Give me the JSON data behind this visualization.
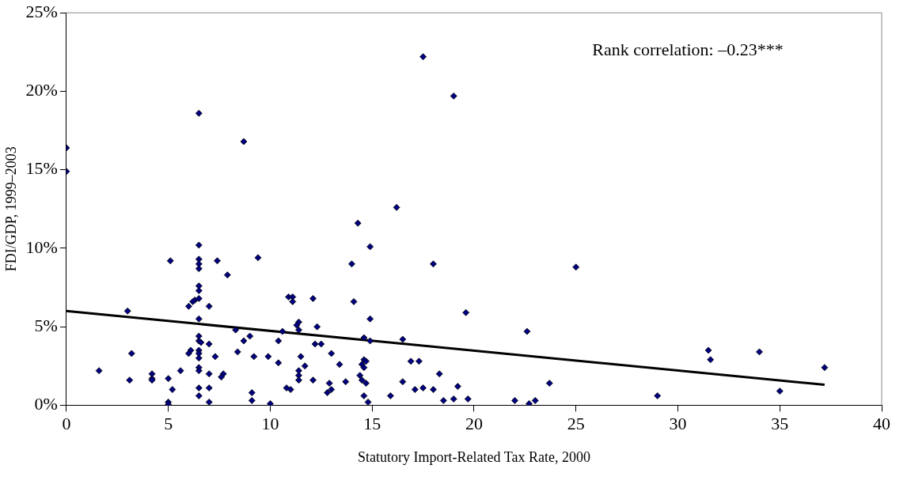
{
  "chart_data": {
    "type": "scatter",
    "xlabel": "Statutory Import-Related Tax Rate, 2000",
    "ylabel": "FDI/GDP, 1999–2003",
    "xlim": [
      0,
      40
    ],
    "xticks": [
      0,
      5,
      10,
      15,
      20,
      25,
      30,
      35,
      40
    ],
    "ylim": [
      0,
      25
    ],
    "yticks": [
      {
        "value": 0,
        "label": "0%"
      },
      {
        "value": 5,
        "label": "5%"
      },
      {
        "value": 10,
        "label": "10%"
      },
      {
        "value": 15,
        "label": "15%"
      },
      {
        "value": 20,
        "label": "20%"
      },
      {
        "value": 25,
        "label": "25%"
      }
    ],
    "grid": false,
    "legend": false,
    "marker": "diamond",
    "annotations": [
      "Rank correlation: –0.23***"
    ],
    "series": [
      {
        "color": "#000080",
        "x": [
          0,
          0,
          8.7,
          6.5,
          17.5,
          19,
          14.3,
          16.2,
          14.9,
          25,
          18,
          14,
          9.4,
          5.1,
          7.4,
          6.5,
          6.5,
          6.5,
          6.5,
          7.9,
          6.5,
          6.5,
          6.5,
          6.3,
          6.2,
          6.0,
          7.0,
          3.0,
          10.9,
          11.1,
          11.1,
          12.1,
          14.1,
          19.6,
          14.9,
          6.5,
          22.6,
          8.3,
          11.4,
          11.3,
          11.4,
          12.3,
          10.6,
          9.0,
          8.7,
          10.4,
          14.6,
          14.9,
          16.5,
          6.5,
          6.5,
          6.6,
          7.0,
          12.2,
          12.5,
          8.4,
          6.1,
          6.0,
          6.5,
          6.5,
          6.5,
          3.2,
          7.3,
          9.2,
          9.9,
          10.4,
          11.5,
          13.0,
          13.4,
          14.6,
          14.7,
          14.5,
          14.6,
          16.9,
          17.3,
          1.6,
          5.6,
          6.5,
          6.5,
          11.7,
          11.4,
          4.2,
          4.2,
          7.0,
          7.7,
          7.6,
          5.0,
          3.1,
          4.2,
          5.2,
          6.5,
          6.5,
          7.0,
          9.1,
          10.8,
          11.4,
          11.4,
          12.1,
          12.9,
          13.0,
          12.8,
          13.7,
          14.4,
          14.5,
          14.7,
          16.5,
          17.1,
          17.5,
          18.0,
          18.3,
          19.2,
          23.7,
          14.6,
          15.9,
          18.5,
          19.0,
          19.7,
          22,
          22.7,
          23,
          14.8,
          7.0,
          9.1,
          10.0,
          5.0,
          5.0,
          29,
          31.5,
          31.6,
          34,
          35,
          37.2,
          11.0
        ],
        "values": [
          16.4,
          14.9,
          16.8,
          18.6,
          22.2,
          19.7,
          11.6,
          12.6,
          10.1,
          8.8,
          9.0,
          9.0,
          9.4,
          9.2,
          9.2,
          10.2,
          9.3,
          9.0,
          8.7,
          8.3,
          7.6,
          7.3,
          6.8,
          6.7,
          6.6,
          6.3,
          6.3,
          6.0,
          6.9,
          6.9,
          6.6,
          6.8,
          6.6,
          5.9,
          5.5,
          5.5,
          4.7,
          4.8,
          5.3,
          5.1,
          4.8,
          5.0,
          4.7,
          4.4,
          4.1,
          4.1,
          4.3,
          4.1,
          4.2,
          4.4,
          4.1,
          4.0,
          3.9,
          3.9,
          3.9,
          3.4,
          3.5,
          3.3,
          3.5,
          3.3,
          3.0,
          3.3,
          3.1,
          3.1,
          3.1,
          2.7,
          3.1,
          3.3,
          2.6,
          2.9,
          2.8,
          2.6,
          2.4,
          2.8,
          2.8,
          2.2,
          2.2,
          2.4,
          2.2,
          2.5,
          2.2,
          2.0,
          1.7,
          2.0,
          2.0,
          1.8,
          1.7,
          1.6,
          1.6,
          1.0,
          1.1,
          0.6,
          1.1,
          0.8,
          1.1,
          1.9,
          1.6,
          1.6,
          1.4,
          1.0,
          0.8,
          1.5,
          1.9,
          1.6,
          1.4,
          1.5,
          1.0,
          1.1,
          1.0,
          2.0,
          1.2,
          1.4,
          0.6,
          0.6,
          0.3,
          0.4,
          0.4,
          0.3,
          0.1,
          0.3,
          0.2,
          0.2,
          0.3,
          0.1,
          0.2,
          0.05,
          0.6,
          3.5,
          2.9,
          3.4,
          0.9,
          2.4,
          1.0
        ]
      },
      {
        "type": "line",
        "color": "#000000",
        "marker": "none",
        "x": [
          0,
          37.2
        ],
        "values": [
          6.0,
          1.3
        ]
      }
    ]
  }
}
